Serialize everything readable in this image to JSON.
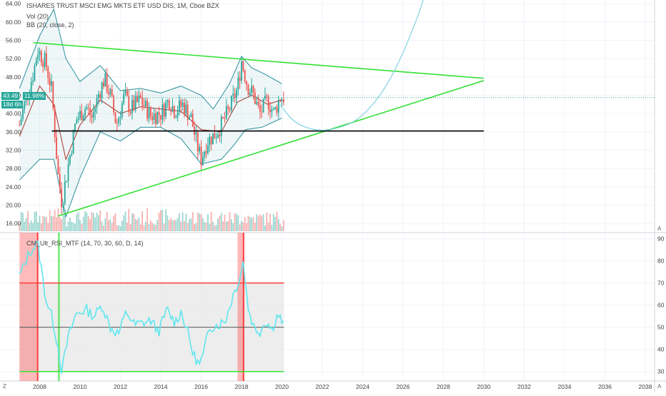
{
  "legend": {
    "title": "ISHARES TRUST MSCI EMG MKTS ETF USD DIS, 1M, Cboe BZX",
    "vol": "Vol (20)",
    "bb": "BB (20, close, 2)",
    "rsi_title": "CM_Ult_RSI_MTF (14, 70, 30, 60, D, 14)"
  },
  "price_labels": {
    "last_price": "43.49",
    "change_pct": "11.98%",
    "countdown": "18d 6h"
  },
  "left_buttons": {
    "z": "Z",
    "a_top": "A",
    "a_bottom": "A"
  },
  "colors": {
    "candle_up": "#26a69a",
    "candle_down": "#ef5350",
    "trendline": "#33e133",
    "support": "#000000",
    "bb_band": "#2a8f9c",
    "bb_basis": "#a0332a",
    "arc": "#7fd3e0",
    "rsi_line": "#5ee6ee",
    "rsi_high": "#ff3b3b",
    "rsi_low": "#33e133",
    "last_price": "#26a69a"
  },
  "chart_data": [
    {
      "type": "candlestick",
      "title": "ISHARES TRUST MSCI EMG MKTS ETF USD DIS, 1M, Cboe BZX",
      "x_ticks": [
        "2008",
        "2010",
        "2012",
        "2014",
        "2016",
        "2018",
        "2020",
        "2022",
        "2024",
        "2026",
        "2028",
        "2030",
        "2032",
        "2034",
        "2036",
        "2038"
      ],
      "y_ticks": [
        "64.00",
        "60.00",
        "56.00",
        "52.00",
        "48.00",
        "44.00",
        "40.00",
        "36.00",
        "32.00",
        "28.00",
        "24.00",
        "20.00",
        "16.00"
      ],
      "ylim": [
        14.0,
        64.8
      ],
      "price_path_years": [
        2007.0,
        2007.3,
        2007.7,
        2007.9,
        2008.3,
        2008.6,
        2008.9,
        2009.1,
        2009.5,
        2009.8,
        2010.3,
        2010.6,
        2010.9,
        2011.2,
        2011.5,
        2011.8,
        2012.2,
        2012.5,
        2013.0,
        2013.5,
        2014.0,
        2014.4,
        2014.7,
        2015.1,
        2015.5,
        2015.8,
        2016.0,
        2016.3,
        2016.7,
        2017.0,
        2017.4,
        2017.8,
        2018.0,
        2018.3,
        2018.6,
        2018.9,
        2019.3,
        2019.6,
        2019.9,
        2020.1
      ],
      "price_path_values": [
        37.5,
        43.0,
        49.0,
        54.0,
        51.0,
        45.0,
        27.0,
        20.5,
        31.0,
        38.5,
        41.5,
        39.0,
        44.0,
        47.5,
        44.0,
        37.5,
        44.0,
        41.0,
        43.0,
        39.5,
        40.0,
        43.0,
        40.5,
        42.0,
        39.0,
        33.0,
        30.0,
        34.0,
        35.5,
        37.5,
        41.0,
        45.5,
        51.5,
        46.0,
        44.0,
        40.0,
        43.0,
        40.0,
        43.5,
        43.49
      ],
      "bollinger_upper_path": [
        [
          2007.0,
          45.5
        ],
        [
          2008.0,
          57.0
        ],
        [
          2008.7,
          62.8
        ],
        [
          2009.3,
          52.0
        ],
        [
          2010.0,
          47.0
        ],
        [
          2011.0,
          50.5
        ],
        [
          2012.0,
          45.0
        ],
        [
          2013.0,
          45.5
        ],
        [
          2014.0,
          44.5
        ],
        [
          2015.0,
          46.0
        ],
        [
          2016.0,
          44.0
        ],
        [
          2016.6,
          41.0
        ],
        [
          2017.4,
          46.5
        ],
        [
          2018.0,
          52.5
        ],
        [
          2018.5,
          50.0
        ],
        [
          2019.2,
          48.5
        ],
        [
          2020.0,
          46.5
        ]
      ],
      "bollinger_lower_path": [
        [
          2007.0,
          25.5
        ],
        [
          2008.0,
          30.0
        ],
        [
          2008.7,
          30.0
        ],
        [
          2009.3,
          17.5
        ],
        [
          2010.0,
          26.0
        ],
        [
          2011.0,
          36.0
        ],
        [
          2012.0,
          34.0
        ],
        [
          2013.0,
          37.0
        ],
        [
          2014.0,
          37.0
        ],
        [
          2015.0,
          34.5
        ],
        [
          2016.0,
          29.0
        ],
        [
          2017.0,
          30.0
        ],
        [
          2017.6,
          33.0
        ],
        [
          2018.2,
          36.5
        ],
        [
          2019.0,
          37.0
        ],
        [
          2020.0,
          39.0
        ]
      ],
      "bollinger_basis_path": [
        [
          2007.0,
          35.0
        ],
        [
          2008.0,
          46.0
        ],
        [
          2008.7,
          42.0
        ],
        [
          2009.3,
          30.0
        ],
        [
          2010.0,
          37.5
        ],
        [
          2011.0,
          43.0
        ],
        [
          2012.0,
          40.0
        ],
        [
          2013.0,
          41.5
        ],
        [
          2014.0,
          41.0
        ],
        [
          2015.0,
          40.5
        ],
        [
          2016.0,
          36.5
        ],
        [
          2017.0,
          36.0
        ],
        [
          2017.8,
          42.5
        ],
        [
          2018.5,
          44.0
        ],
        [
          2019.3,
          42.0
        ],
        [
          2020.0,
          43.0
        ]
      ],
      "trendlines": [
        {
          "x": [
            2007.7,
            2030.0
          ],
          "y": [
            55.5,
            47.7
          ]
        },
        {
          "x": [
            2008.9,
            2030.0
          ],
          "y": [
            17.6,
            47.2
          ]
        },
        {
          "x": [
            2008.6,
            2030.0
          ],
          "y": [
            36.2,
            36.2
          ]
        }
      ],
      "arc_path": [
        [
          2019.9,
          42.0
        ],
        [
          2020.6,
          38.0
        ],
        [
          2021.6,
          36.3
        ],
        [
          2022.6,
          36.5
        ],
        [
          2023.8,
          38.5
        ],
        [
          2025.0,
          44.5
        ],
        [
          2026.0,
          53.0
        ],
        [
          2026.8,
          62.0
        ],
        [
          2027.0,
          64.8
        ]
      ],
      "last_price": 43.49
    },
    {
      "type": "line",
      "title": "CM_Ult_RSI_MTF (14, 70, 30, 60, D, 14)",
      "y_ticks": [
        "90",
        "80",
        "70",
        "60",
        "50",
        "40",
        "30"
      ],
      "ylim": [
        27,
        91.5
      ],
      "levels": [
        70,
        50,
        30
      ],
      "x": [
        2007.0,
        2007.5,
        2007.9,
        2008.3,
        2008.6,
        2008.9,
        2009.1,
        2009.4,
        2009.8,
        2010.3,
        2010.7,
        2011.1,
        2011.5,
        2011.9,
        2012.3,
        2012.7,
        2013.1,
        2013.5,
        2013.9,
        2014.3,
        2014.7,
        2015.0,
        2015.3,
        2015.6,
        2015.9,
        2016.1,
        2016.4,
        2016.8,
        2017.2,
        2017.6,
        2017.9,
        2018.1,
        2018.3,
        2018.6,
        2018.9,
        2019.2,
        2019.5,
        2019.8,
        2020.1
      ],
      "values": [
        73,
        84,
        88,
        63,
        55,
        42,
        30,
        45,
        56,
        58,
        55,
        60,
        50,
        47,
        57,
        51,
        52,
        53,
        48,
        58,
        52,
        57,
        49,
        38,
        33,
        37,
        50,
        51,
        53,
        65,
        72,
        80,
        60,
        50,
        48,
        53,
        49,
        56,
        51
      ],
      "highlights_over": [
        [
          2007.0,
          2007.9
        ],
        [
          2017.8,
          2018.1
        ]
      ],
      "highlights_under": [
        [
          2008.9,
          2009.0
        ]
      ]
    }
  ]
}
